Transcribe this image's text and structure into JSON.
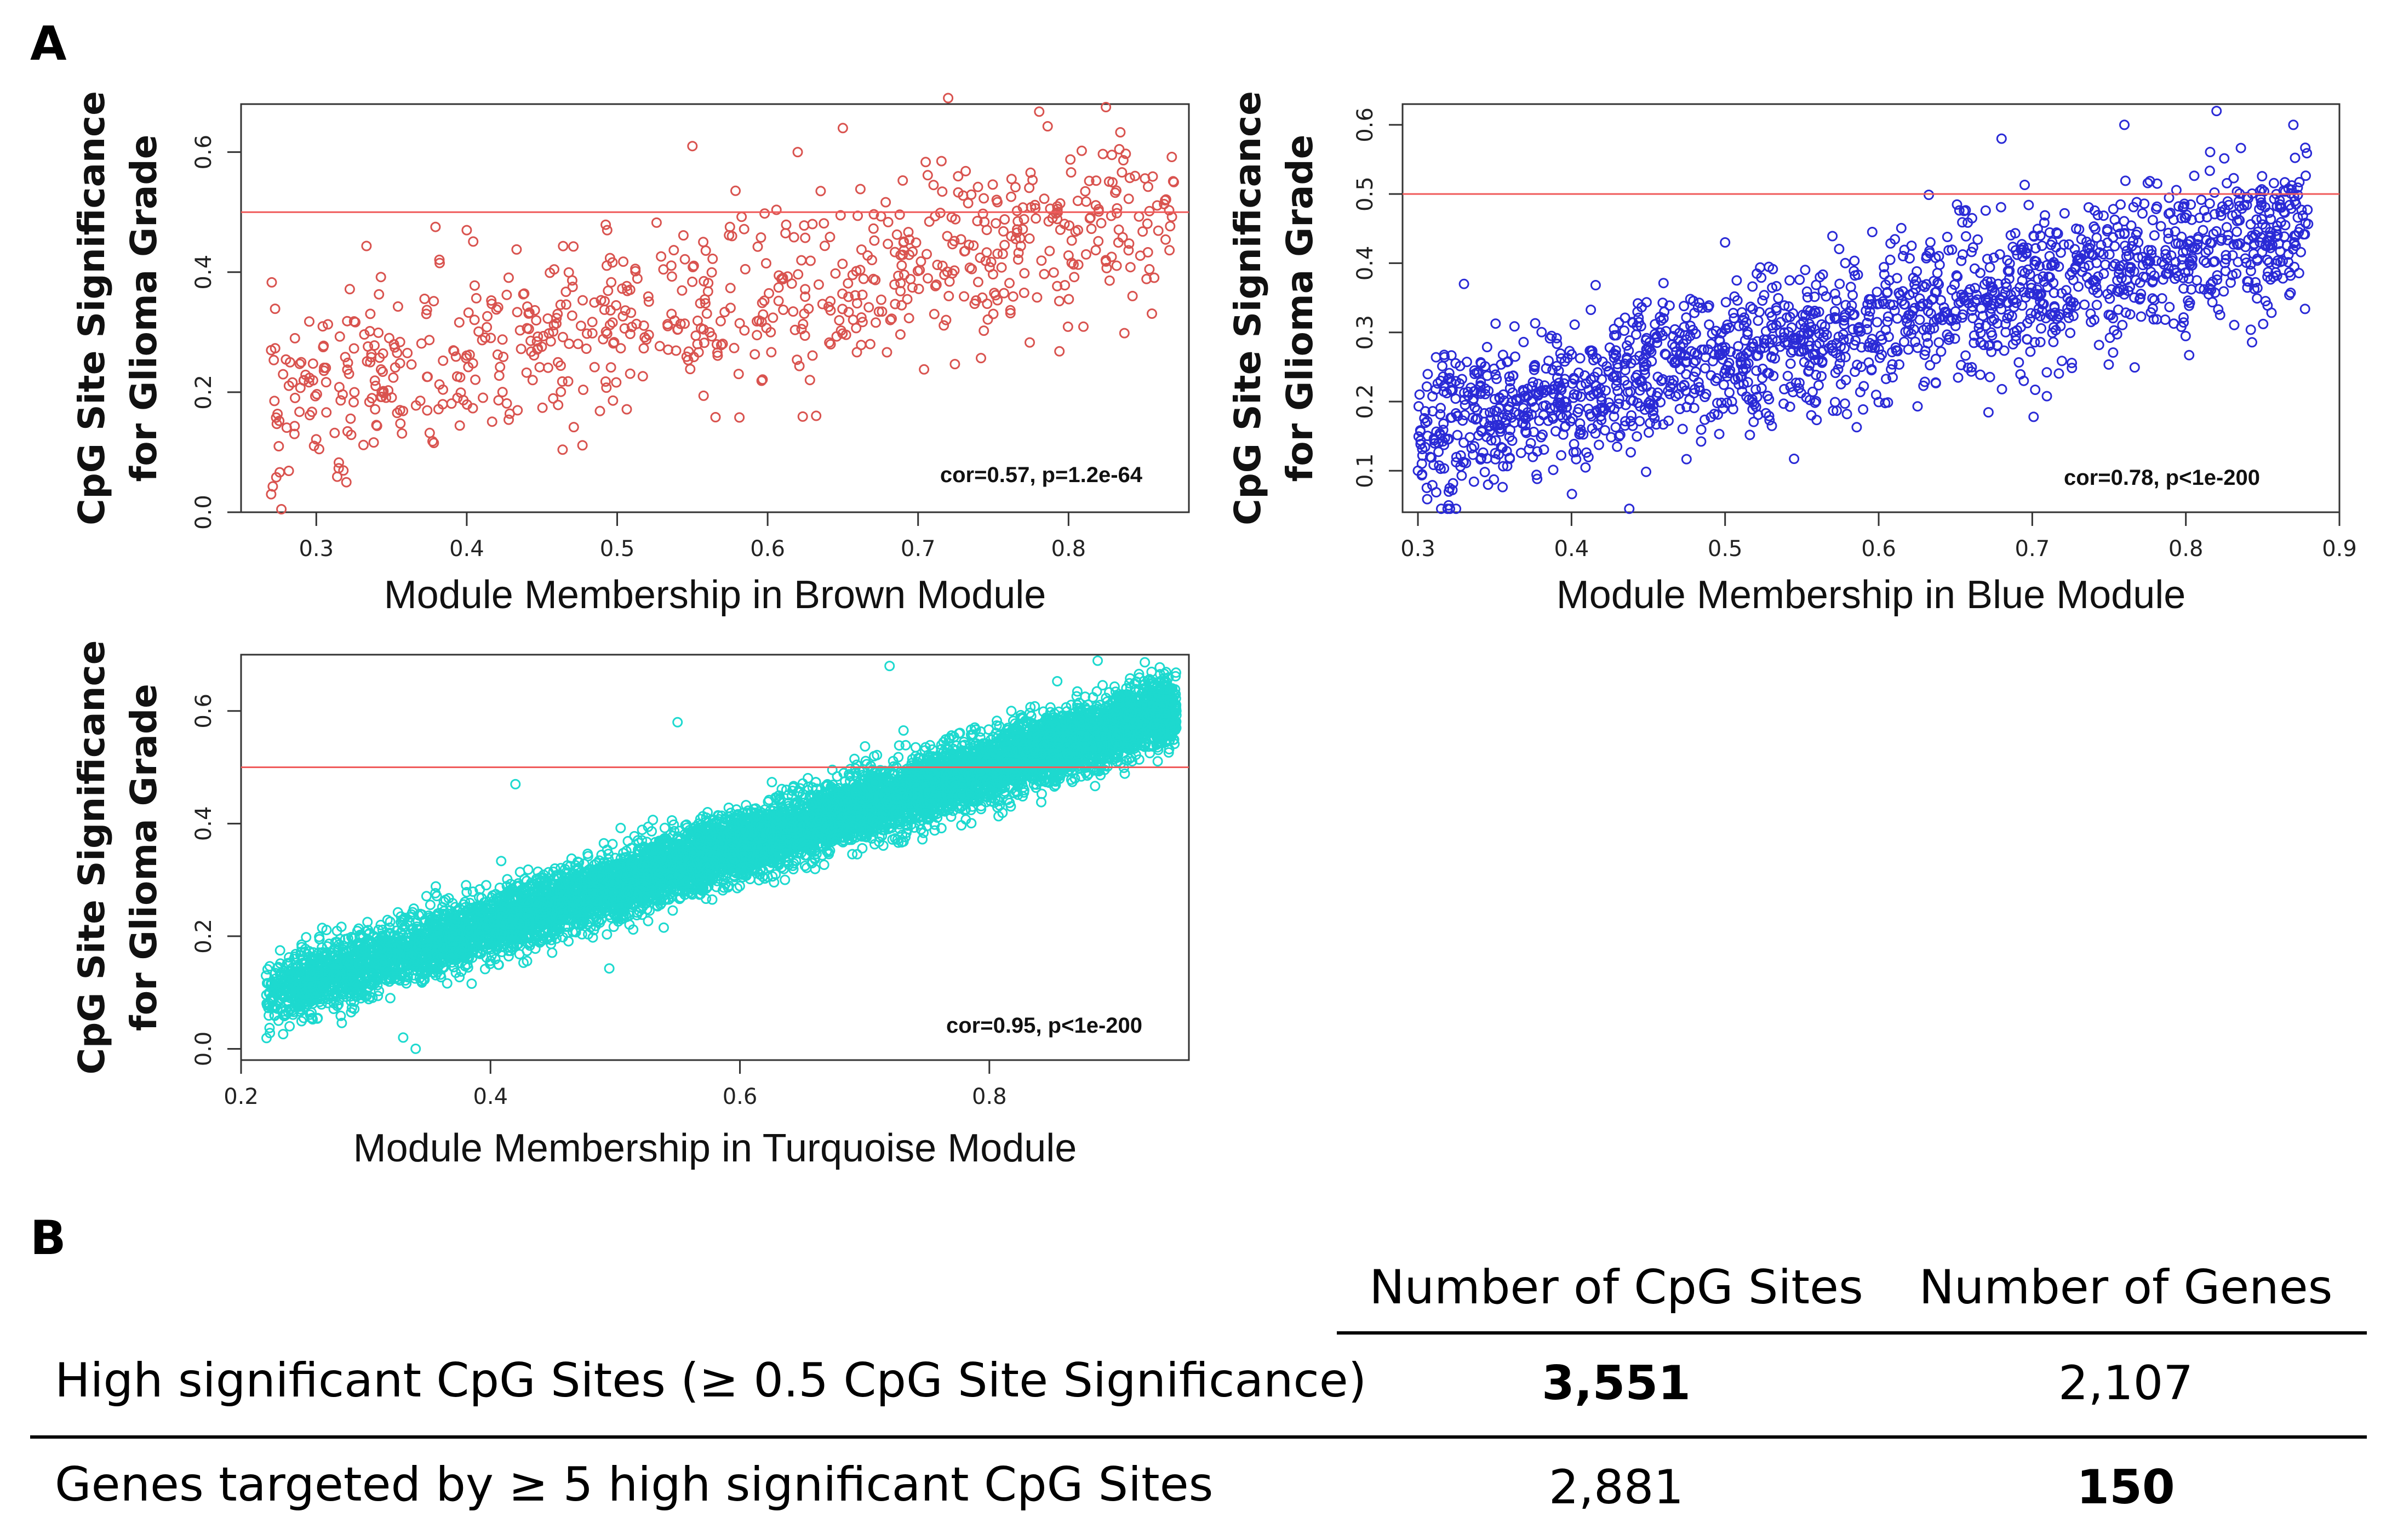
{
  "panels": {
    "a": "A",
    "b": "B"
  },
  "chart_data": [
    {
      "type": "scatter",
      "title": "",
      "xlabel": "Module Membership in Brown Module",
      "ylabel": [
        "CpG Site Significance",
        "for Glioma Grade"
      ],
      "xlim": [
        0.25,
        0.88
      ],
      "ylim": [
        0.0,
        0.68
      ],
      "xticks": [
        0.3,
        0.4,
        0.5,
        0.6,
        0.7,
        0.8
      ],
      "yticks": [
        0.0,
        0.2,
        0.4,
        0.6
      ],
      "hline": 0.5,
      "annotation": "cor=0.57, p=1.2e-64",
      "point_color": "#d9534f",
      "line_color": "#f05a5a",
      "approx_points": 750,
      "trend": {
        "x_range": [
          0.27,
          0.87
        ],
        "slope": 0.55,
        "intercept": 0.03,
        "spread": 0.075
      },
      "sample_points": [
        [
          0.27,
          0.03
        ],
        [
          0.27,
          0.27
        ],
        [
          0.29,
          0.25
        ],
        [
          0.32,
          0.05
        ],
        [
          0.4,
          0.47
        ],
        [
          0.55,
          0.61
        ],
        [
          0.62,
          0.6
        ],
        [
          0.65,
          0.64
        ],
        [
          0.72,
          0.69
        ],
        [
          0.87,
          0.55
        ]
      ]
    },
    {
      "type": "scatter",
      "title": "",
      "xlabel": "Module Membership in Blue Module",
      "ylabel": [
        "CpG Site Significance",
        "for Glioma Grade"
      ],
      "xlim": [
        0.29,
        0.9
      ],
      "ylim": [
        0.04,
        0.63
      ],
      "xticks": [
        0.3,
        0.4,
        0.5,
        0.6,
        0.7,
        0.8,
        0.9
      ],
      "yticks": [
        0.1,
        0.2,
        0.3,
        0.4,
        0.5,
        0.6
      ],
      "hline": 0.5,
      "annotation": "cor=0.78, p<1e-200",
      "point_color": "#2a2ad6",
      "line_color": "#f05a5a",
      "approx_points": 1800,
      "trend": {
        "x_range": [
          0.3,
          0.88
        ],
        "slope": 0.5,
        "intercept": 0.01,
        "spread": 0.055
      },
      "sample_points": [
        [
          0.3,
          0.1
        ],
        [
          0.32,
          0.05
        ],
        [
          0.33,
          0.37
        ],
        [
          0.5,
          0.43
        ],
        [
          0.68,
          0.58
        ],
        [
          0.76,
          0.6
        ],
        [
          0.82,
          0.62
        ],
        [
          0.87,
          0.6
        ]
      ]
    },
    {
      "type": "scatter",
      "title": "",
      "xlabel": "Module Membership in Turquoise Module",
      "ylabel": [
        "CpG Site Significance",
        "for Glioma Grade"
      ],
      "xlim": [
        0.2,
        0.96
      ],
      "ylim": [
        -0.02,
        0.7
      ],
      "xticks": [
        0.2,
        0.4,
        0.6,
        0.8
      ],
      "yticks": [
        0.0,
        0.2,
        0.4,
        0.6
      ],
      "hline": 0.5,
      "annotation": "cor=0.95, p<1e-200",
      "point_color": "#1dd9cf",
      "line_color": "#f05a5a",
      "approx_points": 9000,
      "trend": {
        "x_range": [
          0.22,
          0.95
        ],
        "slope": 0.7,
        "intercept": -0.06,
        "spread": 0.03
      },
      "sample_points": [
        [
          0.22,
          0.13
        ],
        [
          0.23,
          0.05
        ],
        [
          0.33,
          0.02
        ],
        [
          0.34,
          0.0
        ],
        [
          0.42,
          0.47
        ],
        [
          0.55,
          0.58
        ],
        [
          0.72,
          0.68
        ],
        [
          0.95,
          0.6
        ]
      ]
    }
  ],
  "table": {
    "headers": [
      "Number of CpG Sites",
      "Number of Genes"
    ],
    "rows": [
      {
        "label": "High significant CpG Sites (≥ 0.5 CpG Site Significance)",
        "cpg_sites": "3,551",
        "genes": "2,107",
        "bold": "cpg_sites"
      },
      {
        "label": "Genes targeted by ≥ 5 high significant CpG Sites",
        "cpg_sites": "2,881",
        "genes": "150",
        "bold": "genes"
      }
    ]
  }
}
